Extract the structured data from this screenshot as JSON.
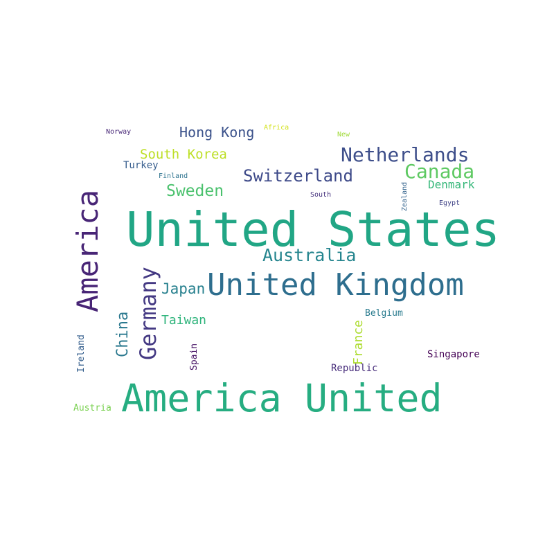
{
  "words": [
    {
      "text": "United States",
      "color": "#21a685"
    },
    {
      "text": "America United",
      "color": "#26ad81"
    },
    {
      "text": "United Kingdom",
      "color": "#2e6e8e"
    },
    {
      "text": "America",
      "color": "#482576"
    },
    {
      "text": "Germany",
      "color": "#443983"
    },
    {
      "text": "Netherlands",
      "color": "#3d4e8a"
    },
    {
      "text": "Canada",
      "color": "#5ec962"
    },
    {
      "text": "Switzerland",
      "color": "#3e4a89"
    },
    {
      "text": "Australia",
      "color": "#25858e"
    },
    {
      "text": "Hong Kong",
      "color": "#3b528b"
    },
    {
      "text": "South Korea",
      "color": "#bddf26"
    },
    {
      "text": "Sweden",
      "color": "#4ac16d"
    },
    {
      "text": "Japan",
      "color": "#27808e"
    },
    {
      "text": "Taiwan",
      "color": "#2fb47c"
    },
    {
      "text": "China",
      "color": "#2a788e"
    },
    {
      "text": "France",
      "color": "#addc30"
    },
    {
      "text": "Denmark",
      "color": "#35b779"
    },
    {
      "text": "Turkey",
      "color": "#365d8d"
    },
    {
      "text": "Singapore",
      "color": "#440154"
    },
    {
      "text": "Republic",
      "color": "#472d7b"
    },
    {
      "text": "Belgium",
      "color": "#297b8e"
    },
    {
      "text": "Austria",
      "color": "#7ad151"
    },
    {
      "text": "Ireland",
      "color": "#355f8d"
    },
    {
      "text": "Spain",
      "color": "#471365"
    },
    {
      "text": "Finland",
      "color": "#2c728e"
    },
    {
      "text": "Norway",
      "color": "#482878"
    },
    {
      "text": "Africa",
      "color": "#d2e21b"
    },
    {
      "text": "New",
      "color": "#a0da39"
    },
    {
      "text": "South",
      "color": "#46327e"
    },
    {
      "text": "Zealand",
      "color": "#33638d"
    },
    {
      "text": "Egypt",
      "color": "#414487"
    }
  ]
}
